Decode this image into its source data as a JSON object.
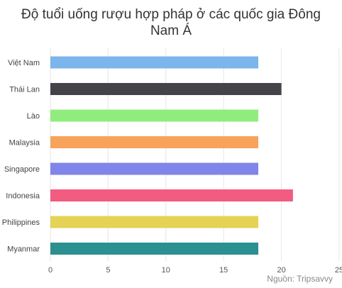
{
  "chart_data": {
    "type": "bar",
    "orientation": "horizontal",
    "title_lines": [
      "Độ tuổi uống rượu hợp pháp ở các quốc gia Đông",
      "Nam Á"
    ],
    "categories": [
      "Việt Nam",
      "Thái Lan",
      "Lào",
      "Malaysia",
      "Singapore",
      "Indonesia",
      "Philippines",
      "Myanmar"
    ],
    "values": [
      18,
      20,
      18,
      18,
      18,
      21,
      18,
      18
    ],
    "colors": [
      "#7cb5ec",
      "#434348",
      "#90ed7d",
      "#f7a35c",
      "#8085e9",
      "#f15c80",
      "#e4d354",
      "#2b908f"
    ],
    "xlim": [
      0,
      25
    ],
    "x_ticks": [
      "0",
      "5",
      "10",
      "15",
      "20",
      "25"
    ],
    "grid": true,
    "source": "Nguồn: Tripsavvy"
  }
}
